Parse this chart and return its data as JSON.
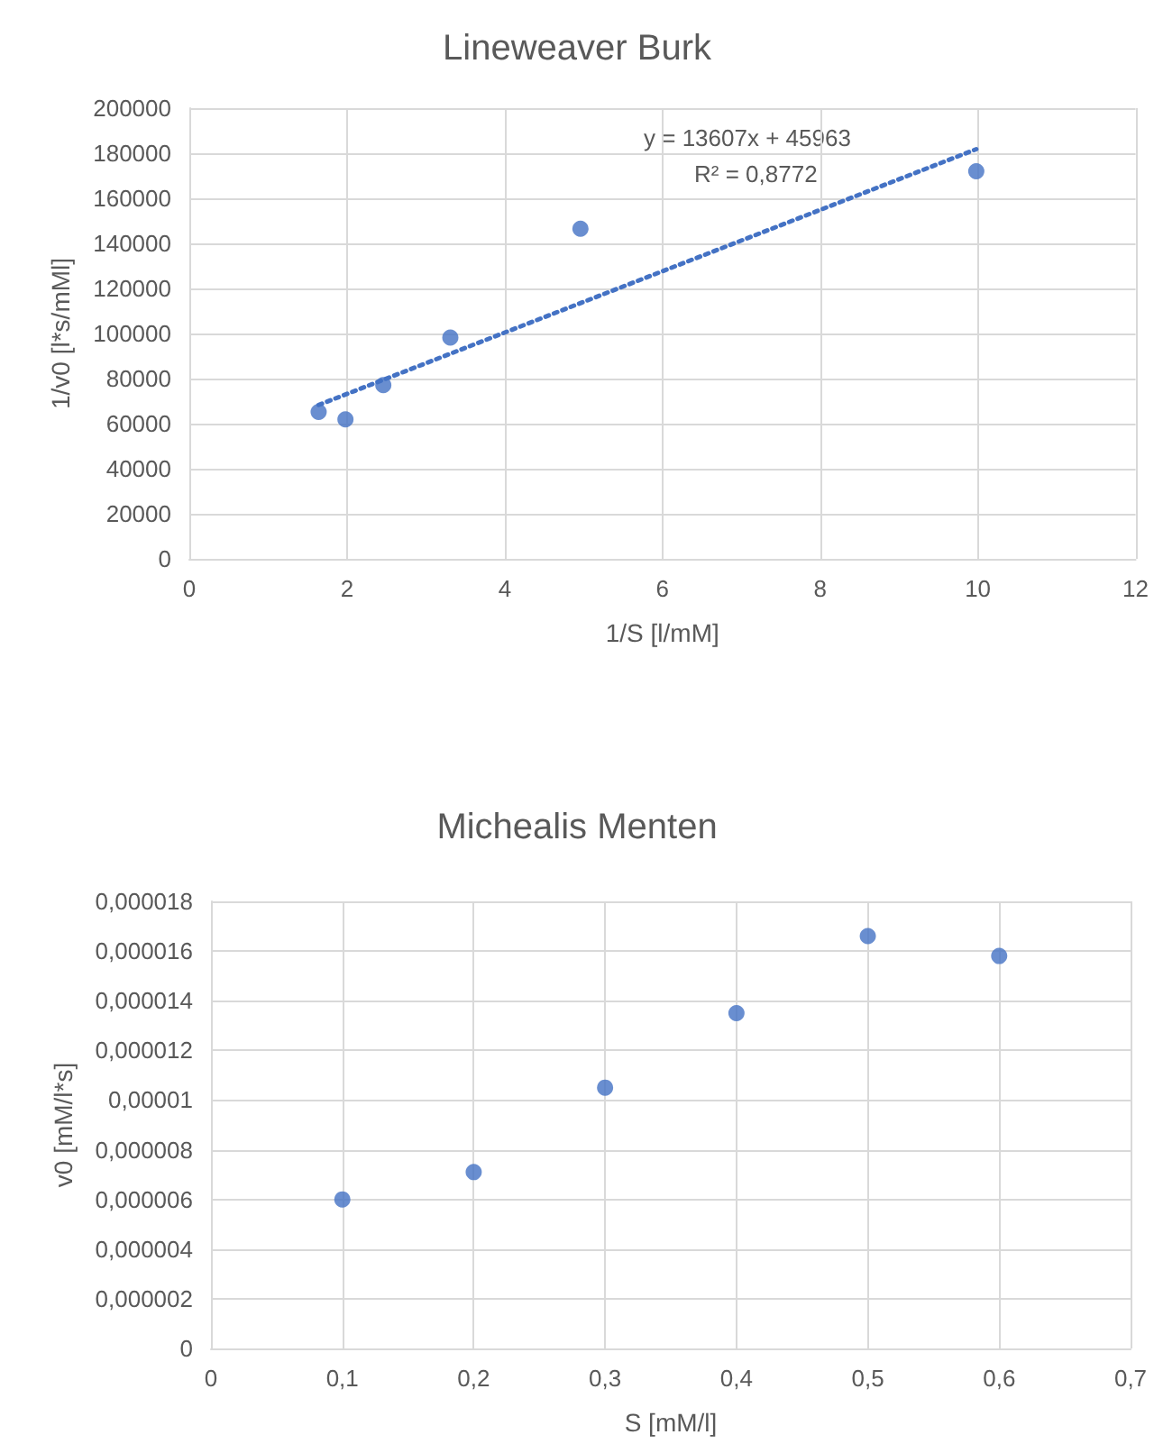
{
  "chart_data": [
    {
      "type": "scatter",
      "title": "Lineweaver Burk",
      "xlabel": "1/S [l/mM]",
      "ylabel": "1/v0 [l*s/mMl]",
      "annotations": [
        "y = 13607x + 45963",
        "R² = 0,8772"
      ],
      "grid": true,
      "marker": "circle",
      "xlim": [
        0,
        12
      ],
      "xticks": [
        0,
        2,
        4,
        6,
        8,
        10,
        12
      ],
      "ylim": [
        0,
        200000
      ],
      "yticks": [
        0,
        20000,
        40000,
        60000,
        80000,
        100000,
        120000,
        140000,
        160000,
        180000,
        200000
      ],
      "series": [
        {
          "color": "#4472c4",
          "x": [
            1.64,
            1.98,
            2.46,
            3.31,
            4.96,
            9.98
          ],
          "values": [
            65200,
            61900,
            77100,
            98200,
            146500,
            172000
          ]
        },
        {
          "type": "line",
          "color": "#4472c4",
          "line_style": "dotted",
          "marker": "none",
          "x": [
            1.64,
            9.98
          ],
          "values": [
            68300,
            181800
          ]
        }
      ]
    },
    {
      "type": "scatter",
      "title": "Michealis Menten",
      "xlabel": "S [mM/l]",
      "ylabel": "v0 [mM/l*s]",
      "grid": true,
      "marker": "circle",
      "xlim": [
        0,
        0.7
      ],
      "xticks": [
        0,
        {
          "value": 0.1,
          "label": "0,1"
        },
        {
          "value": 0.2,
          "label": "0,2"
        },
        {
          "value": 0.3,
          "label": "0,3"
        },
        {
          "value": 0.4,
          "label": "0,4"
        },
        {
          "value": 0.5,
          "label": "0,5"
        },
        {
          "value": 0.6,
          "label": "0,6"
        },
        {
          "value": 0.7,
          "label": "0,7"
        }
      ],
      "ylim": [
        0,
        1.8e-05
      ],
      "yticks": [
        0,
        {
          "value": 2e-06,
          "label": "0,000002"
        },
        {
          "value": 4e-06,
          "label": "0,000004"
        },
        {
          "value": 6e-06,
          "label": "0,000006"
        },
        {
          "value": 8e-06,
          "label": "0,000008"
        },
        {
          "value": 1e-05,
          "label": "0,00001"
        },
        {
          "value": 1.2e-05,
          "label": "0,000012"
        },
        {
          "value": 1.4e-05,
          "label": "0,000014"
        },
        {
          "value": 1.6e-05,
          "label": "0,000016"
        },
        {
          "value": 1.8e-05,
          "label": "0,000018"
        }
      ],
      "series": [
        {
          "color": "#4472c4",
          "x": [
            0.1,
            0.2,
            0.3,
            0.4,
            0.5,
            0.6
          ],
          "values": [
            6e-06,
            7.1e-06,
            1.05e-05,
            1.35e-05,
            1.66e-05,
            1.58e-05
          ]
        }
      ]
    }
  ]
}
